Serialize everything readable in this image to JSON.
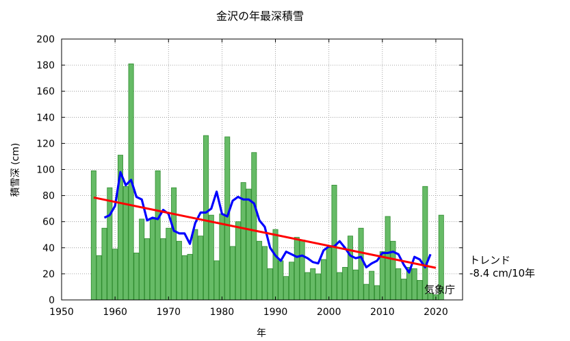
{
  "chart_data": {
    "type": "bar",
    "title": "金沢の年最深積雪",
    "xlabel": "年",
    "ylabel": "積雪深 (cm)",
    "xlim": [
      1950,
      2025
    ],
    "ylim": [
      0,
      200
    ],
    "x_ticks": [
      1950,
      1960,
      1970,
      1980,
      1990,
      2000,
      2010,
      2020
    ],
    "y_ticks": [
      0,
      20,
      40,
      60,
      80,
      100,
      120,
      140,
      160,
      180,
      200
    ],
    "grid": true,
    "years": [
      1956,
      1957,
      1958,
      1959,
      1960,
      1961,
      1962,
      1963,
      1964,
      1965,
      1966,
      1967,
      1968,
      1969,
      1970,
      1971,
      1972,
      1973,
      1974,
      1975,
      1976,
      1977,
      1978,
      1979,
      1980,
      1981,
      1982,
      1983,
      1984,
      1985,
      1986,
      1987,
      1988,
      1989,
      1990,
      1991,
      1992,
      1993,
      1994,
      1995,
      1996,
      1997,
      1998,
      1999,
      2000,
      2001,
      2002,
      2003,
      2004,
      2005,
      2006,
      2007,
      2008,
      2009,
      2010,
      2011,
      2012,
      2013,
      2014,
      2015,
      2016,
      2017,
      2018,
      2019,
      2020,
      2021
    ],
    "series": [
      {
        "type": "bar",
        "color": "#66bb66",
        "values": [
          99,
          34,
          55,
          86,
          39,
          111,
          87,
          181,
          36,
          62,
          47,
          62,
          99,
          47,
          55,
          86,
          45,
          34,
          35,
          54,
          49,
          126,
          65,
          30,
          66,
          125,
          41,
          60,
          90,
          85,
          113,
          45,
          41,
          24,
          54,
          30,
          18,
          29,
          48,
          46,
          21,
          24,
          20,
          31,
          40,
          88,
          21,
          25,
          49,
          23,
          55,
          12,
          22,
          11,
          37,
          64,
          45,
          24,
          16,
          25,
          24,
          15,
          87,
          5,
          4,
          65
        ]
      },
      {
        "type": "line",
        "color": "#0000ff",
        "x": [
          1958,
          1959,
          1960,
          1961,
          1962,
          1963,
          1964,
          1965,
          1966,
          1967,
          1968,
          1969,
          1970,
          1971,
          1972,
          1973,
          1974,
          1975,
          1976,
          1977,
          1978,
          1979,
          1980,
          1981,
          1982,
          1983,
          1984,
          1985,
          1986,
          1987,
          1988,
          1989,
          1990,
          1991,
          1992,
          1993,
          1994,
          1995,
          1996,
          1997,
          1998,
          1999,
          2000,
          2001,
          2002,
          2003,
          2004,
          2005,
          2006,
          2007,
          2008,
          2009,
          2010,
          2011,
          2012,
          2013,
          2014,
          2015,
          2016,
          2017,
          2018,
          2019
        ],
        "values": [
          63,
          65,
          72,
          98,
          88,
          92,
          79,
          77,
          61,
          63,
          62,
          69,
          66,
          53,
          51,
          51,
          43,
          59,
          67,
          67,
          70,
          83,
          66,
          64,
          76,
          79,
          77,
          77,
          74,
          61,
          56,
          40,
          34,
          30,
          37,
          35,
          33,
          34,
          32,
          29,
          28,
          38,
          41,
          41,
          45,
          40,
          34,
          32,
          33,
          25,
          28,
          30,
          36,
          36,
          37,
          35,
          27,
          21,
          33,
          31,
          25,
          35
        ]
      },
      {
        "type": "line",
        "color": "#ff0000",
        "x": [
          1956,
          2020
        ],
        "values": [
          78.5,
          24.6
        ]
      }
    ],
    "annotations": {
      "trend_label": "トレンド",
      "trend_value": "-8.4 cm/10年",
      "credit": "気象庁"
    }
  }
}
